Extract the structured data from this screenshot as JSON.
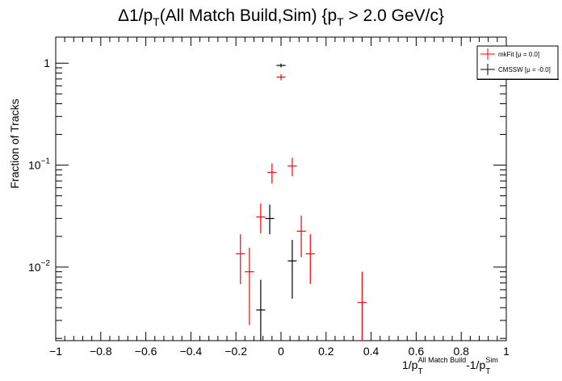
{
  "chart_data": {
    "type": "scatter",
    "title": {
      "pre": "Δ1/p",
      "sub1": "T",
      "mid": "(All Match Build,Sim) {p",
      "sub2": "T",
      "post": " > 2.0 GeV/c}"
    },
    "xlabel": {
      "a": "1/p",
      "a_sub": "T",
      "a_sup": "All Match Build",
      "b": "-1/p",
      "b_sub": "T",
      "b_sup": "Sim"
    },
    "ylabel": "Fraction of Tracks",
    "xlim": [
      -1,
      1
    ],
    "ylim": [
      0.0019,
      1.8
    ],
    "yscale": "log",
    "x_ticks": [
      "−1",
      "−0.8",
      "−0.6",
      "−0.4",
      "−0.2",
      "0",
      "0.2",
      "0.4",
      "0.6",
      "0.8",
      "1"
    ],
    "x_tick_values": [
      -1,
      -0.8,
      -0.6,
      -0.4,
      -0.2,
      0,
      0.2,
      0.4,
      0.6,
      0.8,
      1
    ],
    "y_ticks": [
      {
        "value": 1,
        "base": "1",
        "exp": ""
      },
      {
        "value": 0.1,
        "base": "10",
        "exp": "−1"
      },
      {
        "value": 0.01,
        "base": "10",
        "exp": "−2"
      }
    ],
    "bin_halfwidth": 0.02,
    "series": [
      {
        "name": "mkFit  [μ =  0.0]",
        "color": "#ff0000",
        "points": [
          {
            "x": -0.18,
            "y": 0.0135,
            "lo": 0.0068,
            "hi": 0.021
          },
          {
            "x": -0.14,
            "y": 0.009,
            "lo": 0.0027,
            "hi": 0.0155
          },
          {
            "x": -0.09,
            "y": 0.031,
            "lo": 0.0215,
            "hi": 0.042
          },
          {
            "x": -0.04,
            "y": 0.085,
            "lo": 0.066,
            "hi": 0.104
          },
          {
            "x": 0.0,
            "y": 0.73,
            "lo": 0.68,
            "hi": 0.78
          },
          {
            "x": 0.05,
            "y": 0.098,
            "lo": 0.078,
            "hi": 0.118
          },
          {
            "x": 0.09,
            "y": 0.0225,
            "lo": 0.0125,
            "hi": 0.032
          },
          {
            "x": 0.13,
            "y": 0.0135,
            "lo": 0.0068,
            "hi": 0.021
          },
          {
            "x": 0.36,
            "y": 0.0045,
            "lo": 0.0019,
            "hi": 0.009
          }
        ]
      },
      {
        "name": "CMSSW  [μ = -0.0]",
        "color": "#000000",
        "points": [
          {
            "x": -0.09,
            "y": 0.0038,
            "lo": 0.0019,
            "hi": 0.0075
          },
          {
            "x": -0.05,
            "y": 0.03,
            "lo": 0.021,
            "hi": 0.041
          },
          {
            "x": 0.0,
            "y": 0.95,
            "lo": 0.91,
            "hi": 0.99
          },
          {
            "x": 0.05,
            "y": 0.0115,
            "lo": 0.0049,
            "hi": 0.0185
          }
        ]
      }
    ],
    "legend_position": "top-right",
    "grid": false
  }
}
